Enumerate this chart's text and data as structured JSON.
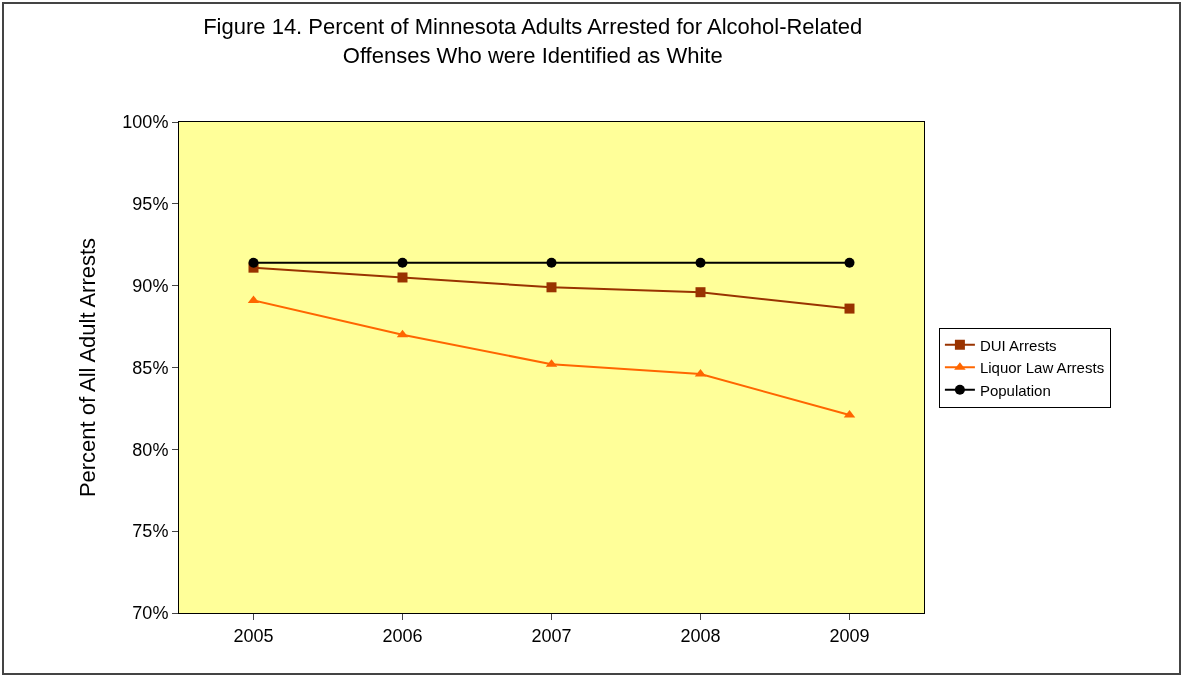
{
  "chart_data": {
    "type": "line",
    "title": "Figure 14. Percent of Minnesota Adults Arrested for Alcohol-Related\nOffenses Who were Identified as White",
    "ylabel": "Percent of All Adult Arrests",
    "categories": [
      "2005",
      "2006",
      "2007",
      "2008",
      "2009"
    ],
    "series": [
      {
        "name": "DUI Arrests",
        "color": "#993300",
        "marker": "square",
        "values": [
          91.1,
          90.5,
          89.9,
          89.6,
          88.6
        ]
      },
      {
        "name": "Liquor Law Arrests",
        "color": "#ff6600",
        "marker": "triangle",
        "values": [
          89.1,
          87.0,
          85.2,
          84.6,
          82.1
        ]
      },
      {
        "name": "Population",
        "color": "#000000",
        "marker": "circle",
        "values": [
          91.4,
          91.4,
          91.4,
          91.4,
          91.4
        ]
      }
    ],
    "ylim": [
      70,
      100
    ],
    "yticks": [
      {
        "value": 70,
        "label": "70%"
      },
      {
        "value": 75,
        "label": "75%"
      },
      {
        "value": 80,
        "label": "80%"
      },
      {
        "value": 85,
        "label": "85%"
      },
      {
        "value": 90,
        "label": "90%"
      },
      {
        "value": 95,
        "label": "95%"
      },
      {
        "value": 100,
        "label": "100%"
      }
    ],
    "grid": false,
    "legend": "right",
    "line_style": "solid"
  }
}
